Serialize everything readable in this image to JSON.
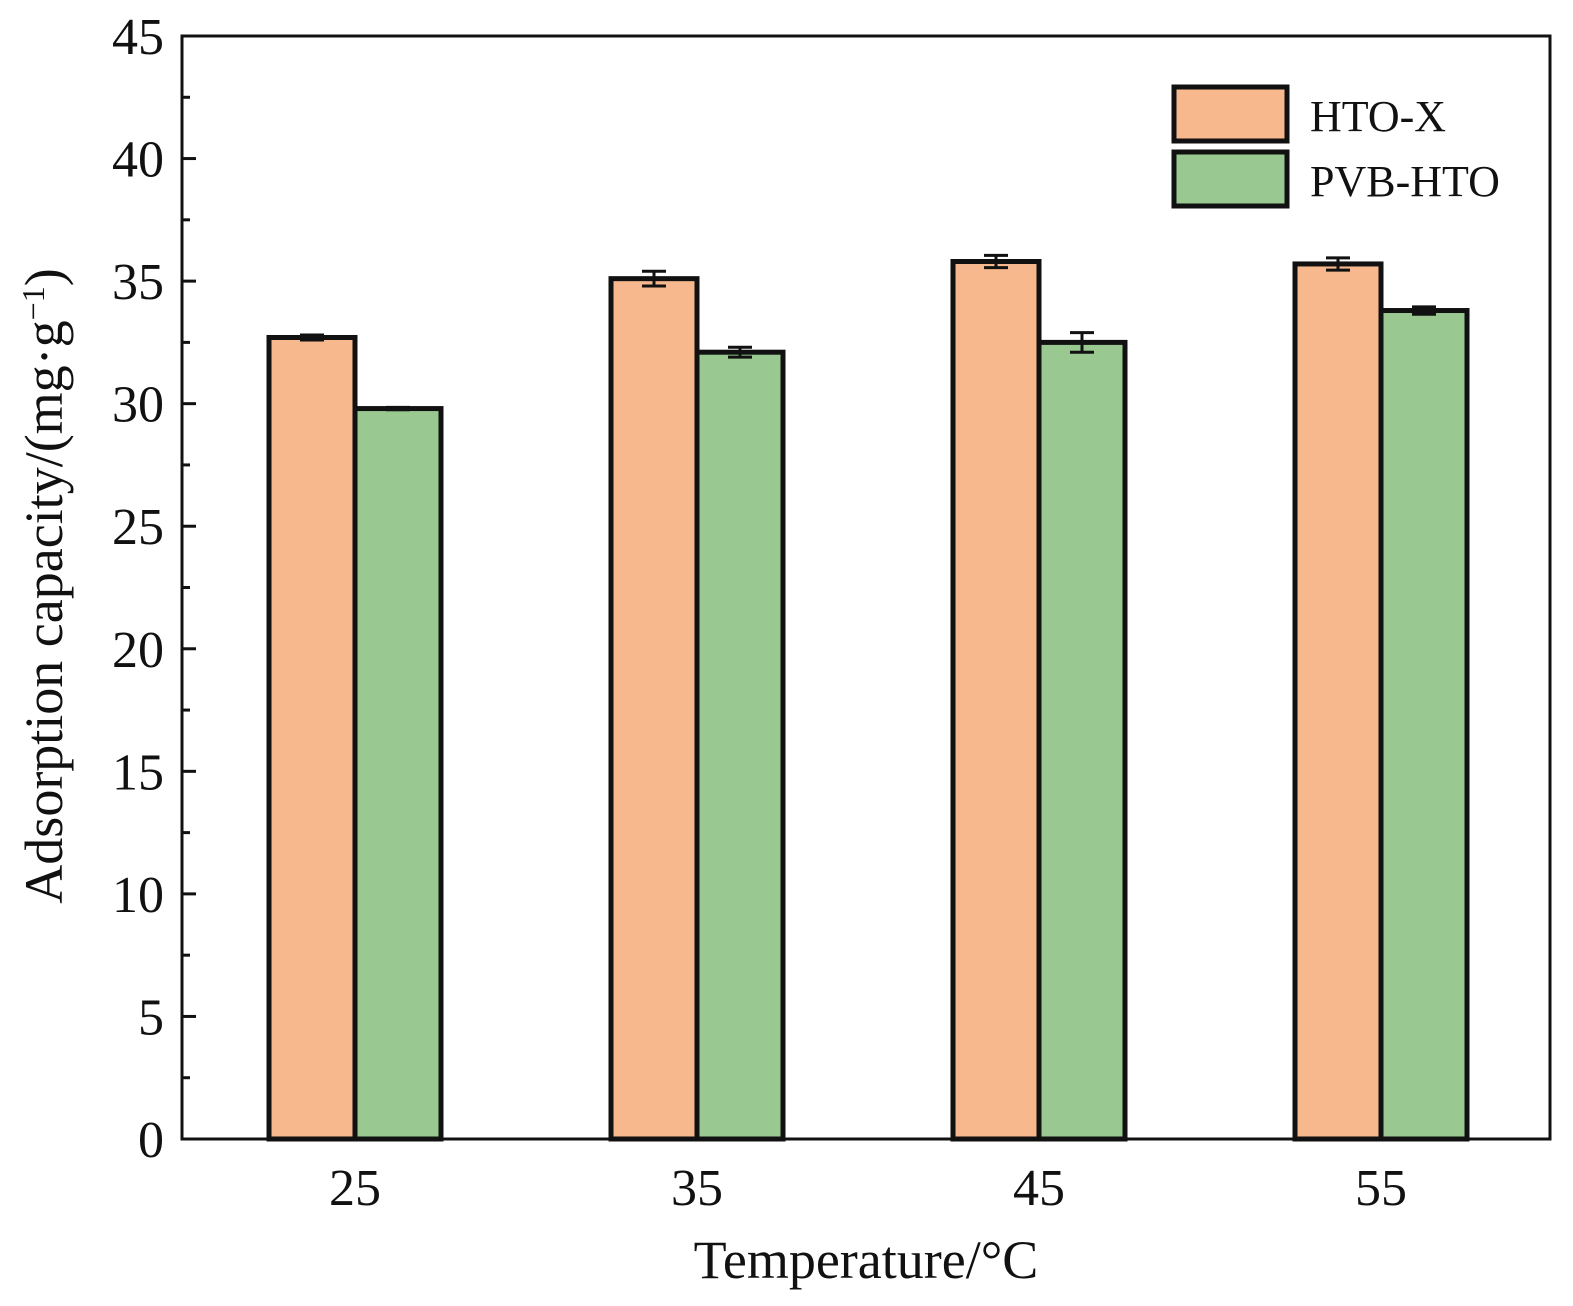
{
  "chart_data": {
    "type": "bar",
    "xlabel": "Temperature/°C",
    "ylabel_main": "Adsorption capacity/(mg·g",
    "ylabel_sup": "−1",
    "ylabel_close": ")",
    "categories": [
      "25",
      "35",
      "45",
      "55"
    ],
    "ylim": [
      0,
      45
    ],
    "yticks": [
      0,
      5,
      10,
      15,
      20,
      25,
      30,
      35,
      40,
      45
    ],
    "ytick_labels": [
      "0",
      "5",
      "10",
      "15",
      "20",
      "25",
      "30",
      "35",
      "40",
      "45"
    ],
    "legend_position": "top-right",
    "grid": false,
    "series": [
      {
        "name": "HTO-X",
        "color": "#f7b88e",
        "values": [
          32.7,
          35.1,
          35.8,
          35.7
        ],
        "errors": [
          0.1,
          0.3,
          0.25,
          0.25
        ]
      },
      {
        "name": "PVB-HTO",
        "color": "#99c991",
        "values": [
          29.8,
          32.1,
          32.5,
          33.8
        ],
        "errors": [
          0.05,
          0.2,
          0.4,
          0.15
        ]
      }
    ]
  }
}
